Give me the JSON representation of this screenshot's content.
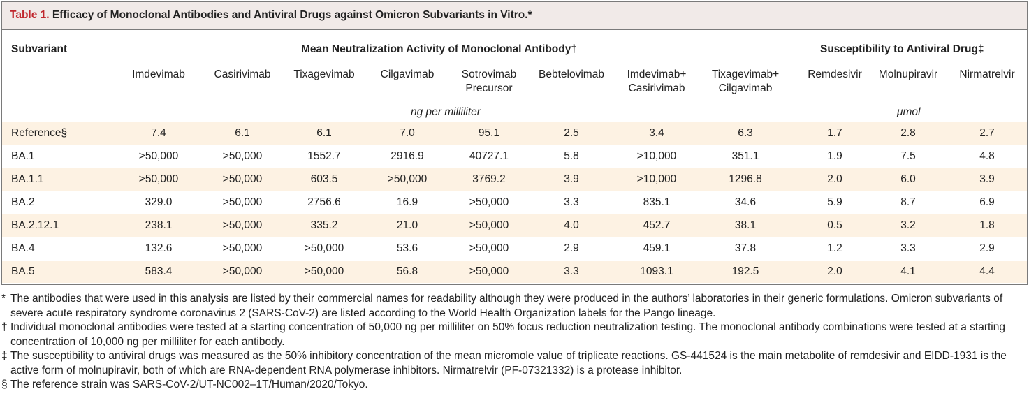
{
  "title": {
    "label": "Table 1.",
    "text": "Efficacy of Monoclonal Antibodies and Antiviral Drugs against Omicron Subvariants in Vitro.*"
  },
  "headers": {
    "subvariant": "Subvariant",
    "antibody_group": "Mean Neutralization Activity of Monoclonal Antibody†",
    "drug_group": "Susceptibility to Antiviral Drug‡",
    "antibody_units": "ng per milliliter",
    "drug_units": "μmol",
    "columns": [
      {
        "line1": "Imdevimab",
        "line2": ""
      },
      {
        "line1": "Casirivimab",
        "line2": ""
      },
      {
        "line1": "Tixagevimab",
        "line2": ""
      },
      {
        "line1": "Cilgavimab",
        "line2": ""
      },
      {
        "line1": "Sotrovimab",
        "line2": "Precursor"
      },
      {
        "line1": "Bebtelovimab",
        "line2": ""
      },
      {
        "line1": "Imdevimab+",
        "line2": "Casirivimab"
      },
      {
        "line1": "Tixagevimab+",
        "line2": "Cilgavimab"
      },
      {
        "line1": "Remdesivir",
        "line2": ""
      },
      {
        "line1": "Molnupiravir",
        "line2": ""
      },
      {
        "line1": "Nirmatrelvir",
        "line2": ""
      }
    ]
  },
  "rows": [
    [
      "Reference§",
      "7.4",
      "6.1",
      "6.1",
      "7.0",
      "95.1",
      "2.5",
      "3.4",
      "6.3",
      "1.7",
      "2.8",
      "2.7"
    ],
    [
      "BA.1",
      ">50,000",
      ">50,000",
      "1552.7",
      "2916.9",
      "40727.1",
      "5.8",
      ">10,000",
      "351.1",
      "1.9",
      "7.5",
      "4.8"
    ],
    [
      "BA.1.1",
      ">50,000",
      ">50,000",
      "603.5",
      ">50,000",
      "3769.2",
      "3.9",
      ">10,000",
      "1296.8",
      "2.0",
      "6.0",
      "3.9"
    ],
    [
      "BA.2",
      "329.0",
      ">50,000",
      "2756.6",
      "16.9",
      ">50,000",
      "3.3",
      "835.1",
      "34.6",
      "5.9",
      "8.7",
      "6.9"
    ],
    [
      "BA.2.12.1",
      "238.1",
      ">50,000",
      "335.2",
      "21.0",
      ">50,000",
      "4.0",
      "452.7",
      "38.1",
      "0.5",
      "3.2",
      "1.8"
    ],
    [
      "BA.4",
      "132.6",
      ">50,000",
      ">50,000",
      "53.6",
      ">50,000",
      "2.9",
      "459.1",
      "37.8",
      "1.2",
      "3.3",
      "2.9"
    ],
    [
      "BA.5",
      "583.4",
      ">50,000",
      ">50,000",
      "56.8",
      ">50,000",
      "3.3",
      "1093.1",
      "192.5",
      "2.0",
      "4.1",
      "4.4"
    ]
  ],
  "footnotes": [
    {
      "symbol": "*",
      "text": "The antibodies that were used in this analysis are listed by their commercial names for readability although they were produced in the authors’ laboratories in their generic formulations. Omicron subvariants of severe acute respiratory syndrome coronavirus 2 (SARS-CoV-2) are listed according to the World Health Organization labels for the Pango lineage."
    },
    {
      "symbol": "†",
      "text": "Individual monoclonal antibodies were tested at a starting concentration of 50,000 ng per milliliter on 50% focus reduction neutralization testing. The monoclonal antibody combinations were tested at a starting concentration of 10,000 ng per milliliter for each antibody."
    },
    {
      "symbol": "‡",
      "text": "The susceptibility to antiviral drugs was measured as the 50% inhibitory concentration of the mean micromole value of triplicate reactions. GS-441524 is the main metabolite of remdesivir and EIDD-1931 is the active form of molnupiravir, both of which are RNA-dependent RNA polymerase inhibitors. Nirmatrelvir (PF-07321332) is a protease inhibitor."
    },
    {
      "symbol": "§",
      "text": "The reference strain was SARS-CoV-2/UT-NC002–1T/Human/2020/Tokyo."
    }
  ]
}
